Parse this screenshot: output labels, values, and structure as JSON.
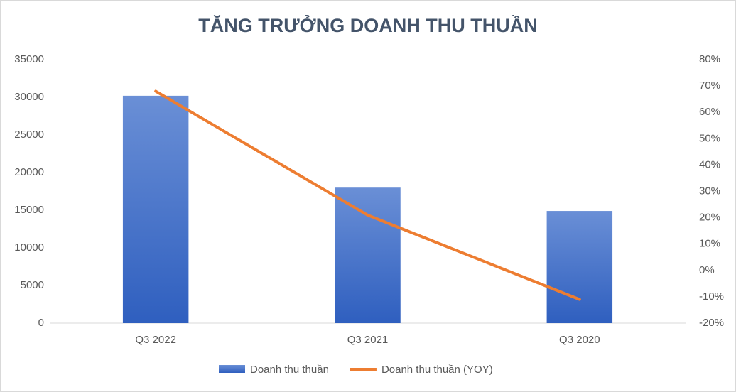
{
  "chart_data": {
    "type": "bar",
    "title": "TĂNG TRƯỞNG DOANH THU THUẦN",
    "categories": [
      "Q3 2022",
      "Q3 2021",
      "Q3 2020"
    ],
    "series": [
      {
        "name": "Doanh thu thuần",
        "type": "bar",
        "color": "#4472c4",
        "values": [
          30200,
          18000,
          14900
        ]
      },
      {
        "name": "Doanh thu thuần (YOY)",
        "type": "line",
        "axis": "y2",
        "color": "#ed7d31",
        "values": [
          68,
          21,
          -11
        ]
      }
    ],
    "ylim": [
      0,
      35000
    ],
    "yticks": [
      0,
      5000,
      10000,
      15000,
      20000,
      25000,
      30000,
      35000
    ],
    "y2lim": [
      -20,
      80
    ],
    "y2ticks": [
      {
        "value": -20,
        "label": "-20%"
      },
      {
        "value": -10,
        "label": "-10%"
      },
      {
        "value": 0,
        "label": "0%"
      },
      {
        "value": 10,
        "label": "10%"
      },
      {
        "value": 20,
        "label": "20%"
      },
      {
        "value": 30,
        "label": "30%"
      },
      {
        "value": 40,
        "label": "40%"
      },
      {
        "value": 50,
        "label": "50%"
      },
      {
        "value": 60,
        "label": "60%"
      },
      {
        "value": 70,
        "label": "70%"
      },
      {
        "value": 80,
        "label": "80%"
      }
    ],
    "grid": false,
    "legend": "bottom"
  }
}
